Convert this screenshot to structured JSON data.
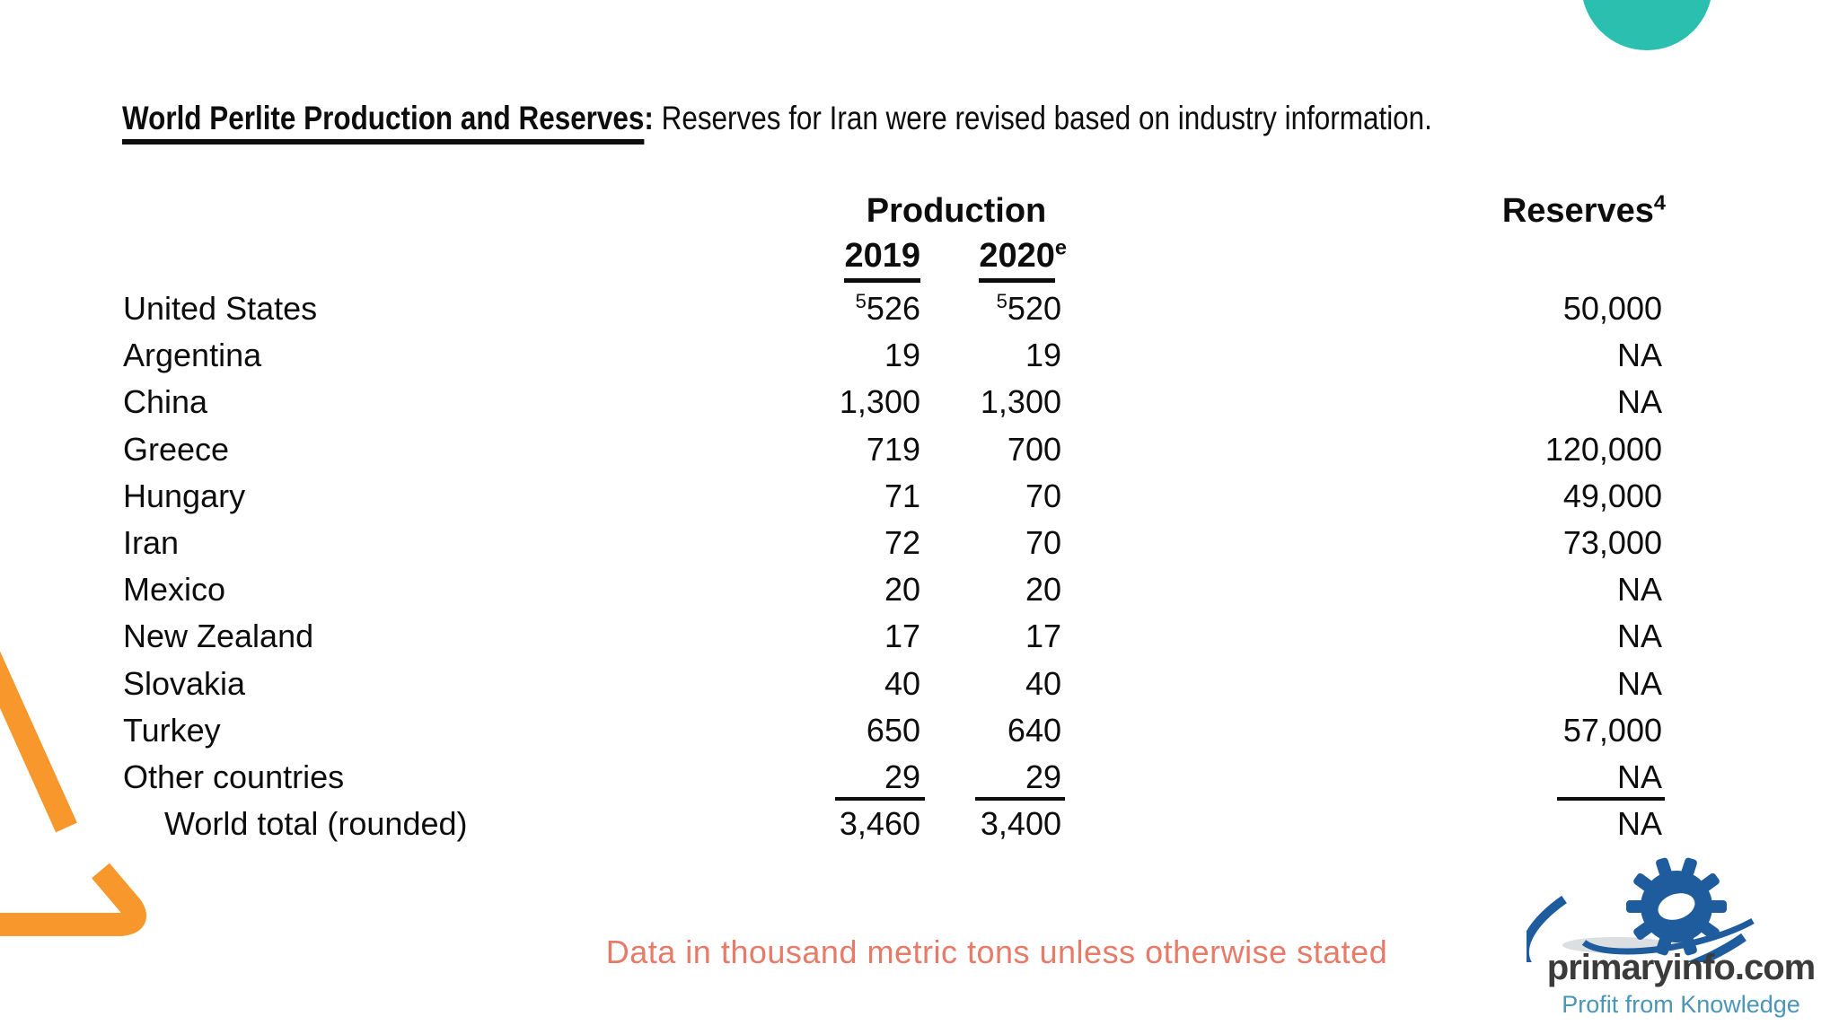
{
  "title": {
    "bold_underlined": "World Perlite Production and Reserves",
    "colon": ":",
    "rest": " Reserves for Iran were revised based on industry information."
  },
  "table": {
    "col_production": "Production",
    "col_2019": "2019",
    "col_2020": "2020",
    "col_2020_sup": "e",
    "col_reserves": "Reserves",
    "col_reserves_sup": "4",
    "rows": [
      {
        "country": "United States",
        "p2019": "526",
        "p2019_sup": "5",
        "p2020": "520",
        "p2020_sup": "5",
        "reserves": "50,000"
      },
      {
        "country": "Argentina",
        "p2019": "19",
        "p2020": "19",
        "reserves": "NA"
      },
      {
        "country": "China",
        "p2019": "1,300",
        "p2020": "1,300",
        "reserves": "NA"
      },
      {
        "country": "Greece",
        "p2019": "719",
        "p2020": "700",
        "reserves": "120,000"
      },
      {
        "country": "Hungary",
        "p2019": "71",
        "p2020": "70",
        "reserves": "49,000"
      },
      {
        "country": "Iran",
        "p2019": "72",
        "p2020": "70",
        "reserves": "73,000"
      },
      {
        "country": "Mexico",
        "p2019": "20",
        "p2020": "20",
        "reserves": "NA"
      },
      {
        "country": "New Zealand",
        "p2019": "17",
        "p2020": "17",
        "reserves": "NA"
      },
      {
        "country": "Slovakia",
        "p2019": "40",
        "p2020": "40",
        "reserves": "NA"
      },
      {
        "country": "Turkey",
        "p2019": "650",
        "p2020": "640",
        "reserves": "57,000"
      },
      {
        "country": "Other countries",
        "p2019": "29",
        "p2020": "29",
        "reserves": "NA"
      },
      {
        "country": "World total (rounded)",
        "indent": true,
        "p2019": "3,460",
        "p2020": "3,400",
        "reserves": "NA"
      }
    ]
  },
  "footer": {
    "note": "Data in thousand metric tons unless otherwise stated"
  },
  "logo": {
    "name": "primaryinfo.com",
    "tagline": "Profit from Knowledge"
  },
  "colors": {
    "teal_circle": "#2abfae",
    "orange_decor": "#f8982c",
    "footer_text": "#e57b68",
    "logo_blue": "#1f5c9e",
    "logo_name_gray": "#3b3b3b",
    "logo_tagline_blue": "#4a96b8",
    "text": "#0d0d0d"
  }
}
